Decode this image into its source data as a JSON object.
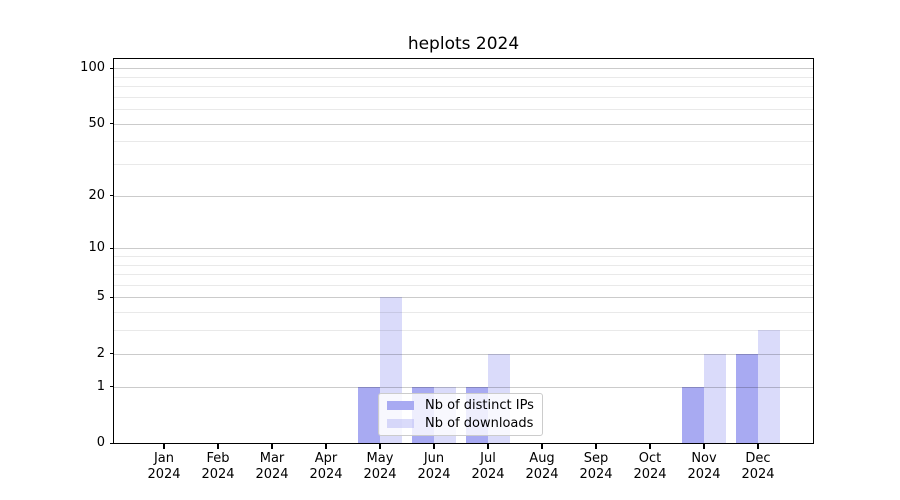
{
  "chart_data": {
    "type": "bar",
    "title": "heplots 2024",
    "x": {
      "months": [
        "Jan",
        "Feb",
        "Mar",
        "Apr",
        "May",
        "Jun",
        "Jul",
        "Aug",
        "Sep",
        "Oct",
        "Nov",
        "Dec"
      ],
      "year": "2024"
    },
    "series": [
      {
        "name": "Nb of distinct IPs",
        "color": "#a8aaf2",
        "alpha": 1,
        "values": [
          0,
          0,
          0,
          0,
          1,
          1,
          1,
          0,
          0,
          0,
          1,
          2
        ]
      },
      {
        "name": "Nb of downloads",
        "color": "#a8aaf2",
        "alpha": 0.42,
        "values": [
          0,
          0,
          0,
          0,
          5,
          1,
          2,
          0,
          0,
          0,
          2,
          3
        ]
      }
    ],
    "y_axis": {
      "scale": "log1p",
      "lim": [
        0,
        100
      ],
      "major_ticks": [
        0,
        1,
        2,
        5,
        10,
        20,
        50,
        100
      ],
      "minor_gridlines": [
        3,
        4,
        6,
        7,
        8,
        9,
        30,
        40,
        60,
        70,
        80,
        90
      ]
    },
    "style": {
      "grid_major_color": "#cbcbcb",
      "grid_minor_color": "#e9e9e9",
      "spine_color": "#000000",
      "legend_border_color": "#cccccc"
    },
    "legend_position": "bottom-center",
    "grid": "horizontal"
  }
}
